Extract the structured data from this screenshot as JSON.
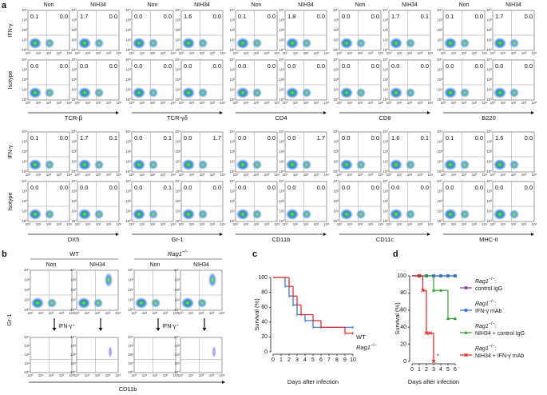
{
  "flow_ticks": [
    "10⁰",
    "10¹",
    "10²",
    "10³",
    "10⁴"
  ],
  "highlight_color": "#e3261c",
  "a": {
    "label": "a",
    "conditions": [
      "Non",
      "NIH34"
    ],
    "rows": [
      "IFN-γ",
      "Isotype"
    ],
    "blocks": [
      {
        "markers": [
          {
            "name": "TCR-β",
            "values": [
              [
                [
                  "0.1",
                  "0.0"
                ],
                [
                  "1.7",
                  "0.0"
                ]
              ],
              [
                [
                  "0.0",
                  "0.0"
                ],
                [
                  "0.0",
                  "0.0"
                ]
              ]
            ],
            "red": [
              [
                0,
                1,
                0
              ]
            ]
          },
          {
            "name": "TCR-γδ",
            "values": [
              [
                [
                  "0.0",
                  "0.0"
                ],
                [
                  "1.6",
                  "0.0"
                ]
              ],
              [
                [
                  "0.0",
                  "0.0"
                ],
                [
                  "0.0",
                  "0.0"
                ]
              ]
            ],
            "red": [
              [
                0,
                1,
                0
              ]
            ]
          },
          {
            "name": "CD4",
            "values": [
              [
                [
                  "0.1",
                  "0.0"
                ],
                [
                  "1.8",
                  "0.0"
                ]
              ],
              [
                [
                  "0.0",
                  "0.0"
                ],
                [
                  "0.0",
                  "0.0"
                ]
              ]
            ],
            "red": [
              [
                0,
                1,
                0
              ]
            ]
          },
          {
            "name": "CD8",
            "values": [
              [
                [
                  "0.0",
                  "0.0"
                ],
                [
                  "1.7",
                  "0.1"
                ]
              ],
              [
                [
                  "0.0",
                  "0.0"
                ],
                [
                  "0.0",
                  "0.0"
                ]
              ]
            ],
            "red": [
              [
                0,
                1,
                0
              ]
            ]
          },
          {
            "name": "B220",
            "values": [
              [
                [
                  "0.1",
                  "0.0"
                ],
                [
                  "1.7",
                  "0.0"
                ]
              ],
              [
                [
                  "0.0",
                  "0.0"
                ],
                [
                  "0.0",
                  "0.0"
                ]
              ]
            ],
            "red": [
              [
                0,
                1,
                0
              ]
            ]
          }
        ]
      },
      {
        "markers": [
          {
            "name": "DX5",
            "values": [
              [
                [
                  "0.1",
                  "0.0"
                ],
                [
                  "1.7",
                  "0.1"
                ]
              ],
              [
                [
                  "0.0",
                  "0.0"
                ],
                [
                  "0.0",
                  "0.0"
                ]
              ]
            ],
            "red": [
              [
                0,
                1,
                0
              ]
            ]
          },
          {
            "name": "Gr-1",
            "values": [
              [
                [
                  "0.0",
                  "0.1"
                ],
                [
                  "0.0",
                  "1.7"
                ]
              ],
              [
                [
                  "0.0",
                  "0.1"
                ],
                [
                  "0.0",
                  "0.0"
                ]
              ]
            ],
            "red": [
              [
                0,
                1,
                1
              ]
            ]
          },
          {
            "name": "CD11b",
            "values": [
              [
                [
                  "0.0",
                  "0.0"
                ],
                [
                  "0.0",
                  "1.7"
                ]
              ],
              [
                [
                  "0.0",
                  "0.0"
                ],
                [
                  "0.0",
                  "0.0"
                ]
              ]
            ],
            "red": [
              [
                0,
                1,
                1
              ]
            ]
          },
          {
            "name": "CD11c",
            "values": [
              [
                [
                  "0.0",
                  "0.0"
                ],
                [
                  "1.6",
                  "0.1"
                ]
              ],
              [
                [
                  "0.0",
                  "0.0"
                ],
                [
                  "0.0",
                  "0.0"
                ]
              ]
            ],
            "red": [
              [
                0,
                1,
                0
              ]
            ]
          },
          {
            "name": "MHC-II",
            "values": [
              [
                [
                  "0.1",
                  "0.0"
                ],
                [
                  "1.6",
                  "0.0"
                ]
              ],
              [
                [
                  "0.0",
                  "0.0"
                ],
                [
                  "0.0",
                  "0.0"
                ]
              ]
            ],
            "red": [
              [
                0,
                1,
                0
              ]
            ]
          }
        ]
      }
    ]
  },
  "b": {
    "label": "b",
    "groups": [
      {
        "name": "WT"
      },
      {
        "gene": "Rag1",
        "sup": "−/−"
      }
    ],
    "conditions": [
      "Non",
      "NIH34"
    ],
    "y_label": "Gr-1",
    "x_label": "CD11b",
    "gate_label": "IFN-γ⁺"
  },
  "c": {
    "label": "c",
    "type": "step",
    "ylabel": "Survival (%)",
    "xlabel": "Days after infection",
    "ylim": [
      0,
      100
    ],
    "yticks": [
      0,
      20,
      40,
      60,
      80,
      100
    ],
    "xlim": [
      0,
      10
    ],
    "xticks": [
      0,
      1,
      2,
      3,
      4,
      5,
      6,
      7,
      8,
      9,
      10
    ],
    "series": [
      {
        "name": "WT",
        "color": "#2a6fc0",
        "marker": "tick",
        "x": [
          0,
          1.5,
          2,
          2.5,
          3,
          4,
          5,
          10
        ],
        "y": [
          100,
          88,
          75,
          63,
          50,
          42,
          33,
          33
        ]
      },
      {
        "gene": "Rag1",
        "sup": "−/−",
        "color": "#e02020",
        "marker": "tick",
        "x": [
          0,
          2,
          2.5,
          3,
          3.5,
          5,
          6,
          9,
          10
        ],
        "y": [
          100,
          88,
          75,
          63,
          50,
          42,
          33,
          25,
          25
        ]
      }
    ]
  },
  "d": {
    "label": "d",
    "type": "step",
    "ylabel": "Survival (%)",
    "xlabel": "Days after infection",
    "ylim": [
      0,
      100
    ],
    "yticks": [
      0,
      20,
      40,
      60,
      80,
      100
    ],
    "xlim": [
      0,
      6
    ],
    "xticks": [
      0,
      1,
      2,
      3,
      4,
      5,
      6
    ],
    "annotation": "*",
    "series": [
      {
        "gene": "Rag1",
        "sup": "−/−",
        "tail": ":",
        "name": "control IgG",
        "color": "#7b3fa0",
        "marker": "square",
        "x": [
          0,
          1,
          2,
          3,
          4,
          5,
          6
        ],
        "y": [
          100,
          100,
          100,
          100,
          100,
          100,
          100
        ]
      },
      {
        "gene": "Rag1",
        "sup": "−/−",
        "tail": ":",
        "name": "IFN-γ mAb",
        "color": "#2f6fd0",
        "marker": "square",
        "x": [
          0,
          1,
          2,
          3,
          4,
          5,
          6
        ],
        "y": [
          100,
          100,
          100,
          100,
          100,
          100,
          100
        ]
      },
      {
        "gene": "Rag1",
        "sup": "−/−",
        "tail": ":",
        "name": "NIH34 + control IgG",
        "color": "#2ca02c",
        "marker": "triangle",
        "x": [
          0,
          1,
          2,
          3,
          4,
          5,
          6
        ],
        "y": [
          100,
          100,
          100,
          83,
          83,
          50,
          50
        ]
      },
      {
        "gene": "Rag1",
        "sup": "−/−",
        "tail": ":",
        "name": "NIH34 + IFN-γ mAb",
        "color": "#e02020",
        "marker": "cross",
        "x": [
          0,
          1,
          1.5,
          2,
          2.5,
          3
        ],
        "y": [
          100,
          100,
          83,
          33,
          33,
          0
        ]
      }
    ]
  }
}
